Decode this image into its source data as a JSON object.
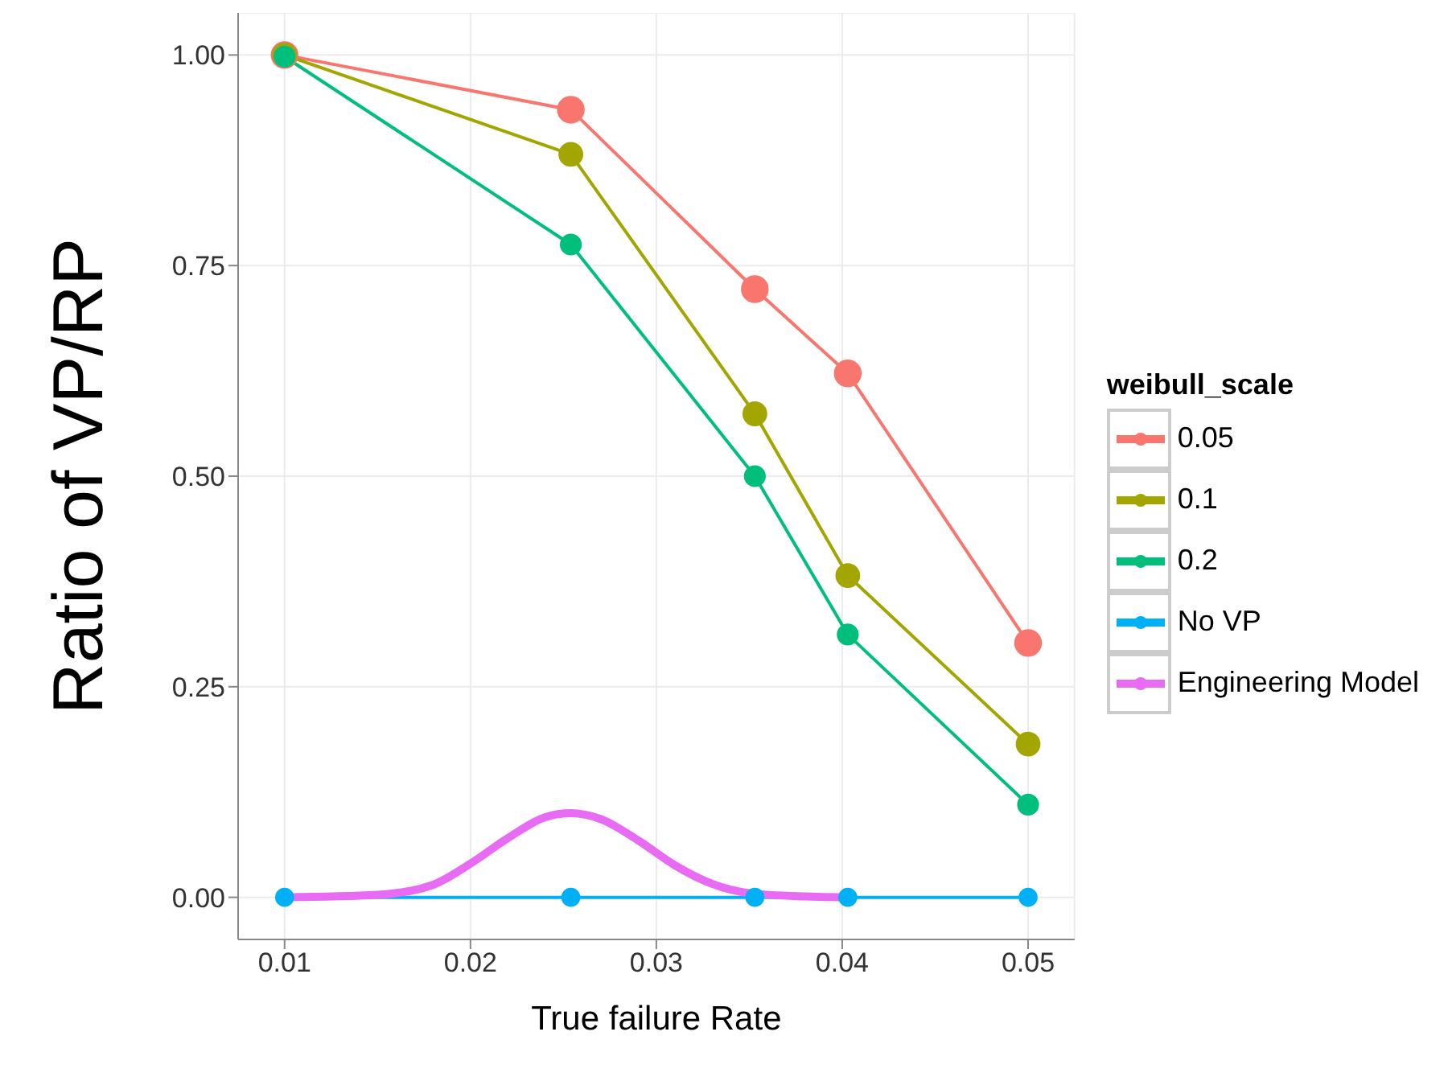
{
  "chart_data": {
    "type": "line",
    "xlabel": "True failure Rate",
    "ylabel": "Ratio of VP/RP",
    "legend_title": "weibull_scale",
    "xlim": [
      0.0075,
      0.0525
    ],
    "xticks": [
      0.01,
      0.02,
      0.03,
      0.04,
      0.05
    ],
    "ylim": [
      -0.05,
      1.05
    ],
    "yticks": [
      {
        "value": 0,
        "label": "0.00"
      },
      {
        "value": 0.25,
        "label": "0.25"
      },
      {
        "value": 0.5,
        "label": "0.50"
      },
      {
        "value": 0.75,
        "label": "0.75"
      },
      {
        "value": 1,
        "label": "1.00"
      }
    ],
    "grid": true,
    "legend": "right",
    "marker": "circle",
    "line_style": "solid",
    "x": [
      0.01,
      0.0254,
      0.0353,
      0.0403,
      0.05
    ],
    "series": [
      {
        "name": "0.05",
        "color": "#f8766d",
        "values": [
          1.0,
          0.935,
          0.722,
          0.622,
          0.302
        ]
      },
      {
        "name": "0.1",
        "color": "#a3a500",
        "values": [
          1.0,
          0.882,
          0.574,
          0.382,
          0.182
        ]
      },
      {
        "name": "0.2",
        "color": "#00bf7d",
        "values": [
          0.998,
          0.775,
          0.5,
          0.312,
          0.11
        ]
      },
      {
        "name": "No VP",
        "color": "#00b0f6",
        "values": [
          0,
          0,
          0,
          0,
          0
        ]
      },
      {
        "name": "Engineering Model",
        "color": "#e76bf3",
        "marker": "none",
        "x": [
          0.01,
          0.015,
          0.018,
          0.02,
          0.022,
          0.024,
          0.0254,
          0.027,
          0.029,
          0.031,
          0.033,
          0.035,
          0.038,
          0.0403
        ],
        "values": [
          0,
          0.003,
          0.015,
          0.04,
          0.07,
          0.095,
          0.1,
          0.093,
          0.068,
          0.038,
          0.016,
          0.005,
          0.001,
          0
        ]
      }
    ]
  }
}
